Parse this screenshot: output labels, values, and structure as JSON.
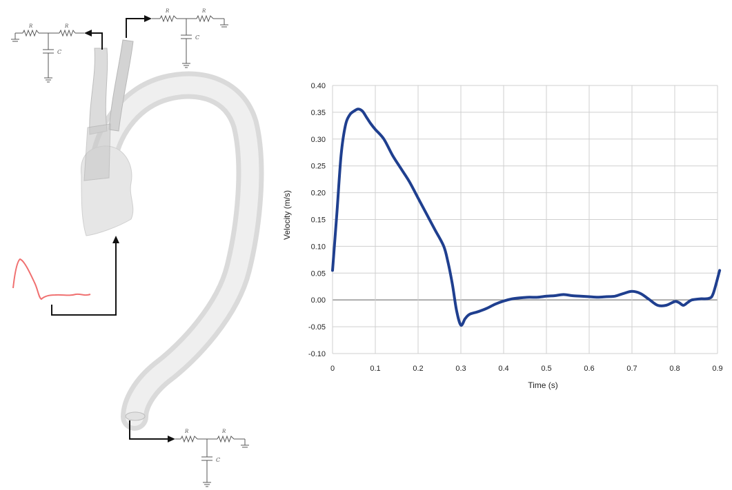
{
  "diagram": {
    "windkessel_top_left": {
      "r1": "R",
      "r2": "R",
      "c": "C"
    },
    "windkessel_top_right": {
      "r1": "R",
      "r2": "R",
      "c": "C"
    },
    "windkessel_bottom": {
      "r1": "R",
      "r2": "R",
      "c": "C"
    },
    "inlet_waveform_color": "#f07070",
    "vessel_color": "#e9e9e9"
  },
  "chart_data": {
    "type": "line",
    "xlabel": "Time (s)",
    "ylabel": "Velocity (m/s)",
    "xlim": [
      0,
      0.9
    ],
    "ylim": [
      -0.1,
      0.4
    ],
    "xticks": [
      "0",
      "0.1",
      "0.2",
      "0.3",
      "0.4",
      "0.5",
      "0.6",
      "0.7",
      "0.8",
      "0.9"
    ],
    "yticks": [
      "0.40",
      "0.35",
      "0.30",
      "0.25",
      "0.20",
      "0.15",
      "0.10",
      "0.05",
      "0.00",
      "-0.05",
      "-0.10"
    ],
    "grid": true,
    "line_color": "#1f3f8f",
    "series": [
      {
        "x": [
          0.0,
          0.01,
          0.02,
          0.03,
          0.04,
          0.05,
          0.06,
          0.07,
          0.08,
          0.09,
          0.1,
          0.12,
          0.14,
          0.16,
          0.18,
          0.2,
          0.22,
          0.24,
          0.26,
          0.27,
          0.28,
          0.29,
          0.3,
          0.31,
          0.32,
          0.34,
          0.36,
          0.38,
          0.4,
          0.42,
          0.44,
          0.46,
          0.48,
          0.5,
          0.52,
          0.54,
          0.56,
          0.58,
          0.6,
          0.62,
          0.64,
          0.66,
          0.68,
          0.7,
          0.72,
          0.74,
          0.76,
          0.78,
          0.8,
          0.81,
          0.82,
          0.83,
          0.84,
          0.86,
          0.88,
          0.89,
          0.905
        ],
        "y": [
          0.055,
          0.16,
          0.27,
          0.325,
          0.345,
          0.352,
          0.356,
          0.352,
          0.34,
          0.328,
          0.318,
          0.3,
          0.27,
          0.245,
          0.22,
          0.19,
          0.16,
          0.13,
          0.1,
          0.07,
          0.03,
          -0.02,
          -0.047,
          -0.035,
          -0.027,
          -0.022,
          -0.016,
          -0.008,
          -0.002,
          0.002,
          0.004,
          0.005,
          0.005,
          0.007,
          0.008,
          0.01,
          0.008,
          0.007,
          0.006,
          0.005,
          0.006,
          0.007,
          0.012,
          0.016,
          0.012,
          0.001,
          -0.01,
          -0.01,
          -0.003,
          -0.005,
          -0.01,
          -0.005,
          0.0,
          0.002,
          0.003,
          0.012,
          0.055
        ]
      }
    ]
  }
}
